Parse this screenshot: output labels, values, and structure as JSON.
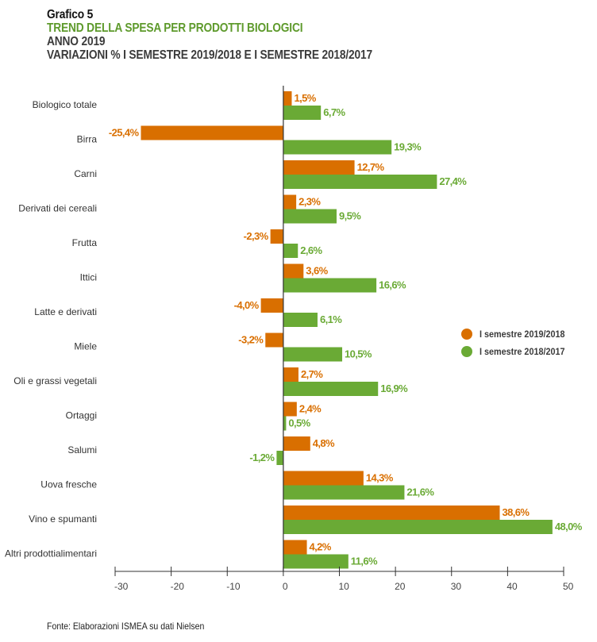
{
  "header": {
    "label": "Grafico 5",
    "title": "TREND DELLA SPESA PER PRODOTTI BIOLOGICI",
    "year": "ANNO 2019",
    "subtitle": "VARIAZIONI % I SEMESTRE 2019/2018 E I SEMESTRE 2018/2017"
  },
  "colors": {
    "series_2019_2018": "#d96f00",
    "series_2018_2017": "#6aaa35",
    "title_green": "#5e9a2c",
    "axis": "#333333"
  },
  "chart_data": {
    "type": "bar",
    "orientation": "horizontal",
    "title": "TREND DELLA SPESA PER PRODOTTI BIOLOGICI - ANNO 2019 - VARIAZIONI % I SEMESTRE 2019/2018 E I SEMESTRE 2018/2017",
    "xlabel": "",
    "ylabel": "",
    "xlim": [
      -30,
      50
    ],
    "xticks": [
      -30,
      -20,
      -10,
      0,
      10,
      20,
      30,
      40,
      50
    ],
    "xtick_labels": [
      "-30",
      "-20",
      "-10",
      "0",
      "10",
      "20",
      "30",
      "40",
      "50"
    ],
    "grid": false,
    "legend_position": "right",
    "categories": [
      "Biologico totale",
      "Birra",
      "Carni",
      "Derivati dei cereali",
      "Frutta",
      "Ittici",
      "Latte e derivati",
      "Miele",
      "Oli e grassi vegetali",
      "Ortaggi",
      "Salumi",
      "Uova fresche",
      "Vino e spumanti",
      "Altri prodottialimentari"
    ],
    "series": [
      {
        "name": "I semestre 2019/2018",
        "color": "#d96f00",
        "values": [
          1.5,
          -25.4,
          12.7,
          2.3,
          -2.3,
          3.6,
          -4.0,
          -3.2,
          2.7,
          2.4,
          4.8,
          14.3,
          38.6,
          4.2
        ],
        "labels": [
          "1,5%",
          "-25,4%",
          "12,7%",
          "2,3%",
          "-2,3%",
          "3,6%",
          "-4,0%",
          "-3,2%",
          "2,7%",
          "2,4%",
          "4,8%",
          "14,3%",
          "38,6%",
          "4,2%"
        ]
      },
      {
        "name": "I semestre 2018/2017",
        "color": "#6aaa35",
        "values": [
          6.7,
          19.3,
          27.4,
          9.5,
          2.6,
          16.6,
          6.1,
          10.5,
          16.9,
          0.5,
          -1.2,
          21.6,
          48.0,
          11.6
        ],
        "labels": [
          "6,7%",
          "19,3%",
          "27,4%",
          "9,5%",
          "2,6%",
          "16,6%",
          "6,1%",
          "10,5%",
          "16,9%",
          "0,5%",
          "-1,2%",
          "21,6%",
          "48,0%",
          "11,6%"
        ]
      }
    ]
  },
  "legend": {
    "items": [
      {
        "label": "I semestre 2019/2018",
        "color": "#d96f00"
      },
      {
        "label": "I semestre 2018/2017",
        "color": "#6aaa35"
      }
    ]
  },
  "footer": {
    "source": "Fonte: Elaborazioni ISMEA su dati Nielsen"
  }
}
